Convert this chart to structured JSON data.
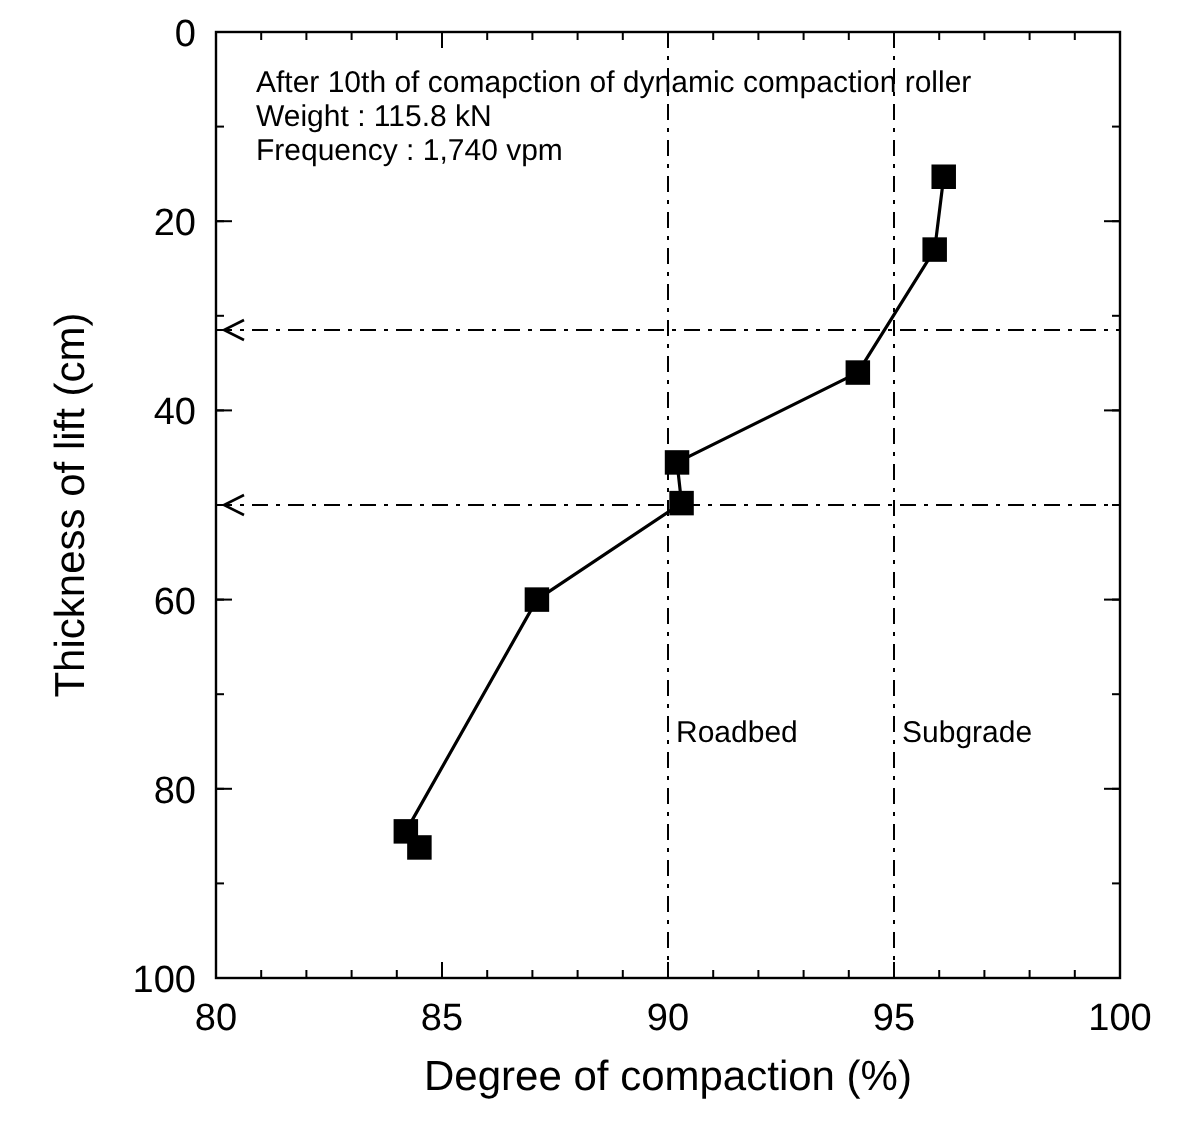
{
  "chart_data": {
    "type": "line",
    "xlabel": "Degree of compaction (%)",
    "ylabel": "Thickness of lift (cm)",
    "annotations": [
      "After 10th of comapction of dynamic compaction roller",
      "Weight : 115.8 kN",
      "Frequency : 1,740 vpm"
    ],
    "series": [
      {
        "color": "#000000",
        "x": [
          96.1,
          95.9,
          94.2,
          90.2,
          90.3,
          87.1,
          84.2,
          84.5
        ],
        "values": [
          15.3,
          23.0,
          36.0,
          45.5,
          49.8,
          60,
          84.5,
          86.2
        ]
      }
    ],
    "xlim": [
      80,
      100
    ],
    "xticks": [
      80,
      85,
      90,
      95,
      100
    ],
    "ylim": [
      100,
      0
    ],
    "yticks": [
      0,
      20,
      40,
      60,
      80,
      100
    ],
    "ref_lines": [
      {
        "axis": "x",
        "value": 90,
        "label": "Roadbed",
        "line_style": "dashed",
        "color": "#000000"
      },
      {
        "axis": "x",
        "value": 95,
        "label": "Subgrade",
        "line_style": "dashed",
        "color": "#000000"
      },
      {
        "axis": "y",
        "value": 50,
        "line_style": "dashed",
        "color": "#000000"
      },
      {
        "axis": "y",
        "value": 31.5,
        "line_style": "dashed",
        "color": "#000000"
      }
    ],
    "grid": false,
    "marker": "square",
    "line_style": "solid"
  }
}
